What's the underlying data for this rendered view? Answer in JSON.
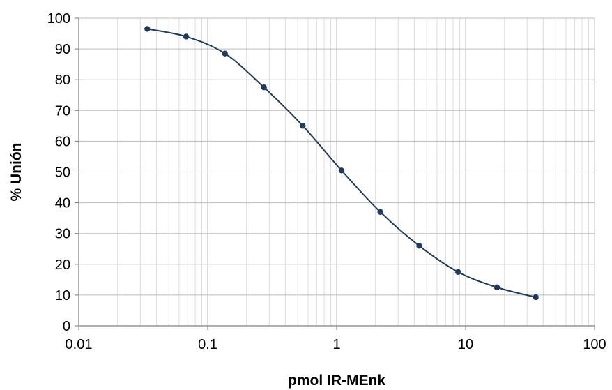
{
  "chart_data": {
    "type": "scatter",
    "title": "",
    "xlabel": "pmol IR-MEnk",
    "ylabel": "% Unión",
    "x_scale": "log",
    "xlim": [
      0.01,
      100
    ],
    "ylim": [
      0,
      100
    ],
    "x_ticks": [
      0.01,
      0.1,
      1,
      10,
      100
    ],
    "x_tick_labels": [
      "0.01",
      "0.1",
      "1",
      "10",
      "100"
    ],
    "y_ticks": [
      0,
      10,
      20,
      30,
      40,
      50,
      60,
      70,
      80,
      90,
      100
    ],
    "y_tick_labels": [
      "0",
      "10",
      "20",
      "30",
      "40",
      "50",
      "60",
      "70",
      "80",
      "90",
      "100"
    ],
    "grid": true,
    "legend": "none",
    "series": [
      {
        "color": "#1f3a5f",
        "marker": "circle",
        "line": "smooth",
        "x": [
          0.034,
          0.068,
          0.136,
          0.273,
          0.546,
          1.09,
          2.18,
          4.37,
          8.74,
          17.5,
          35
        ],
        "y": [
          96.5,
          94,
          88.5,
          77.5,
          65,
          50.5,
          37,
          26,
          17.5,
          12.5,
          9.3
        ]
      }
    ]
  }
}
